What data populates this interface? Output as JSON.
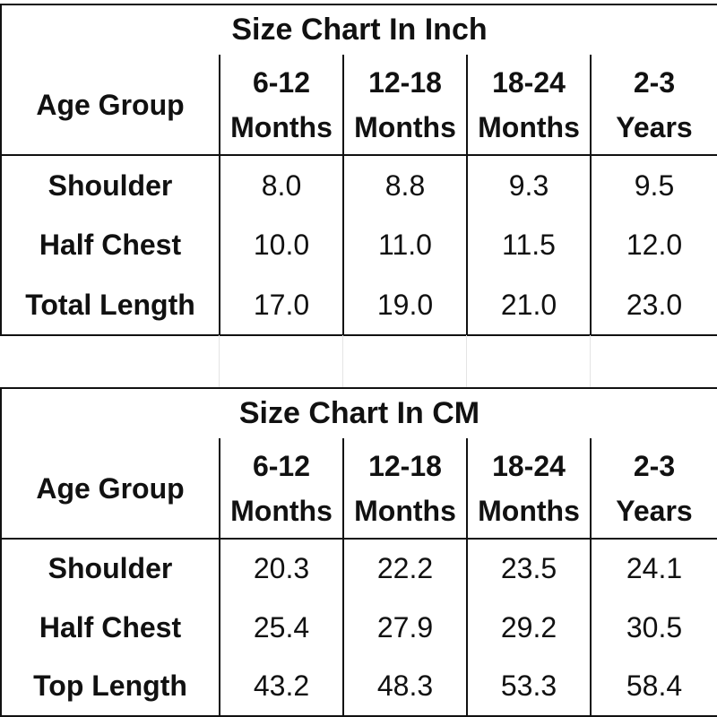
{
  "tables": [
    {
      "title": "Size Chart In Inch",
      "corner": "Age Group",
      "columns": [
        {
          "line1": "6-12",
          "line2": "Months"
        },
        {
          "line1": "12-18",
          "line2": "Months"
        },
        {
          "line1": "18-24",
          "line2": "Months"
        },
        {
          "line1": "2-3",
          "line2": "Years"
        }
      ],
      "rows": [
        {
          "label": "Shoulder",
          "values": [
            "8.0",
            "8.8",
            "9.3",
            "9.5"
          ]
        },
        {
          "label": "Half Chest",
          "values": [
            "10.0",
            "11.0",
            "11.5",
            "12.0"
          ]
        },
        {
          "label": "Total Length",
          "values": [
            "17.0",
            "19.0",
            "21.0",
            "23.0"
          ]
        }
      ]
    },
    {
      "title": "Size Chart In CM",
      "corner": "Age Group",
      "columns": [
        {
          "line1": "6-12",
          "line2": "Months"
        },
        {
          "line1": "12-18",
          "line2": "Months"
        },
        {
          "line1": "18-24",
          "line2": "Months"
        },
        {
          "line1": "2-3",
          "line2": "Years"
        }
      ],
      "rows": [
        {
          "label": "Shoulder",
          "values": [
            "20.3",
            "22.2",
            "23.5",
            "24.1"
          ]
        },
        {
          "label": "Half Chest",
          "values": [
            "25.4",
            "27.9",
            "29.2",
            "30.5"
          ]
        },
        {
          "label": "Top Length",
          "values": [
            "43.2",
            "48.3",
            "53.3",
            "58.4"
          ]
        }
      ]
    }
  ]
}
